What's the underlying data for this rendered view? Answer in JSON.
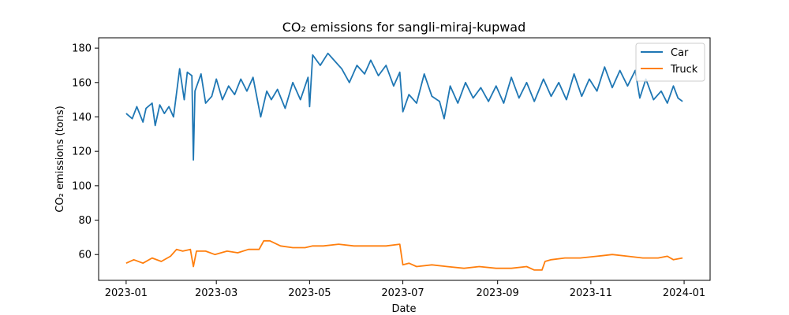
{
  "chart_data": {
    "type": "line",
    "title": "CO₂ emissions for sangli-miraj-kupwad",
    "xlabel": "Date",
    "ylabel": "CO₂ emissions (tons)",
    "xlim": [
      "2022-12-14",
      "2024-01-18"
    ],
    "ylim": [
      45,
      186
    ],
    "x_ticks": [
      "2023-01-01",
      "2023-03-01",
      "2023-05-01",
      "2023-07-01",
      "2023-09-01",
      "2023-11-01",
      "2024-01-01"
    ],
    "x_tick_labels": [
      "2023-01",
      "2023-03",
      "2023-05",
      "2023-07",
      "2023-09",
      "2023-11",
      "2024-01"
    ],
    "y_ticks": [
      60,
      80,
      100,
      120,
      140,
      160,
      180
    ],
    "legend": "top-right",
    "grid": false,
    "series": [
      {
        "name": "Car",
        "color": "#1f77b4",
        "x": [
          "2023-01-01",
          "2023-01-05",
          "2023-01-08",
          "2023-01-12",
          "2023-01-14",
          "2023-01-18",
          "2023-01-20",
          "2023-01-23",
          "2023-01-26",
          "2023-01-29",
          "2023-02-01",
          "2023-02-05",
          "2023-02-08",
          "2023-02-10",
          "2023-02-13",
          "2023-02-14",
          "2023-02-15",
          "2023-02-19",
          "2023-02-22",
          "2023-02-26",
          "2023-03-01",
          "2023-03-05",
          "2023-03-09",
          "2023-03-13",
          "2023-03-17",
          "2023-03-21",
          "2023-03-25",
          "2023-03-30",
          "2023-04-03",
          "2023-04-06",
          "2023-04-10",
          "2023-04-15",
          "2023-04-20",
          "2023-04-25",
          "2023-04-30",
          "2023-05-01",
          "2023-05-03",
          "2023-05-08",
          "2023-05-13",
          "2023-05-18",
          "2023-05-22",
          "2023-05-27",
          "2023-06-01",
          "2023-06-06",
          "2023-06-10",
          "2023-06-15",
          "2023-06-20",
          "2023-06-25",
          "2023-06-29",
          "2023-07-01",
          "2023-07-05",
          "2023-07-10",
          "2023-07-15",
          "2023-07-20",
          "2023-07-25",
          "2023-07-28",
          "2023-08-01",
          "2023-08-06",
          "2023-08-11",
          "2023-08-16",
          "2023-08-21",
          "2023-08-26",
          "2023-08-31",
          "2023-09-05",
          "2023-09-10",
          "2023-09-15",
          "2023-09-20",
          "2023-09-25",
          "2023-10-01",
          "2023-10-06",
          "2023-10-11",
          "2023-10-16",
          "2023-10-21",
          "2023-10-26",
          "2023-10-31",
          "2023-11-05",
          "2023-11-10",
          "2023-11-15",
          "2023-11-20",
          "2023-11-25",
          "2023-11-30",
          "2023-12-03",
          "2023-12-07",
          "2023-12-12",
          "2023-12-17",
          "2023-12-21",
          "2023-12-25",
          "2023-12-28",
          "2023-12-31"
        ],
        "values": [
          142,
          139,
          146,
          137,
          145,
          148,
          135,
          147,
          142,
          146,
          140,
          168,
          150,
          166,
          164,
          115,
          155,
          165,
          148,
          152,
          162,
          150,
          158,
          153,
          162,
          155,
          163,
          140,
          155,
          150,
          156,
          145,
          160,
          150,
          163,
          146,
          176,
          170,
          177,
          172,
          168,
          160,
          170,
          165,
          173,
          164,
          170,
          158,
          166,
          143,
          153,
          148,
          165,
          152,
          149,
          139,
          158,
          148,
          160,
          151,
          157,
          149,
          158,
          148,
          163,
          151,
          160,
          149,
          162,
          152,
          160,
          150,
          165,
          152,
          162,
          155,
          169,
          157,
          167,
          158,
          167,
          151,
          162,
          150,
          155,
          148,
          158,
          151,
          149
        ]
      },
      {
        "name": "Truck",
        "color": "#ff7f0e",
        "x": [
          "2023-01-01",
          "2023-01-06",
          "2023-01-12",
          "2023-01-18",
          "2023-01-24",
          "2023-01-30",
          "2023-02-03",
          "2023-02-07",
          "2023-02-12",
          "2023-02-14",
          "2023-02-16",
          "2023-02-22",
          "2023-02-28",
          "2023-03-08",
          "2023-03-15",
          "2023-03-22",
          "2023-03-29",
          "2023-04-01",
          "2023-04-05",
          "2023-04-12",
          "2023-04-20",
          "2023-04-28",
          "2023-05-03",
          "2023-05-10",
          "2023-05-20",
          "2023-05-30",
          "2023-06-10",
          "2023-06-20",
          "2023-06-29",
          "2023-07-01",
          "2023-07-05",
          "2023-07-10",
          "2023-07-20",
          "2023-07-30",
          "2023-08-10",
          "2023-08-20",
          "2023-08-31",
          "2023-09-10",
          "2023-09-20",
          "2023-09-25",
          "2023-09-30",
          "2023-10-02",
          "2023-10-06",
          "2023-10-15",
          "2023-10-25",
          "2023-11-05",
          "2023-11-15",
          "2023-11-25",
          "2023-12-05",
          "2023-12-15",
          "2023-12-21",
          "2023-12-25",
          "2023-12-31"
        ],
        "values": [
          55,
          57,
          55,
          58,
          56,
          59,
          63,
          62,
          63,
          53,
          62,
          62,
          60,
          62,
          61,
          63,
          63,
          68,
          68,
          65,
          64,
          64,
          65,
          65,
          66,
          65,
          65,
          65,
          66,
          54,
          55,
          53,
          54,
          53,
          52,
          53,
          52,
          52,
          53,
          51,
          51,
          56,
          57,
          58,
          58,
          59,
          60,
          59,
          58,
          58,
          59,
          57,
          58
        ]
      }
    ]
  }
}
